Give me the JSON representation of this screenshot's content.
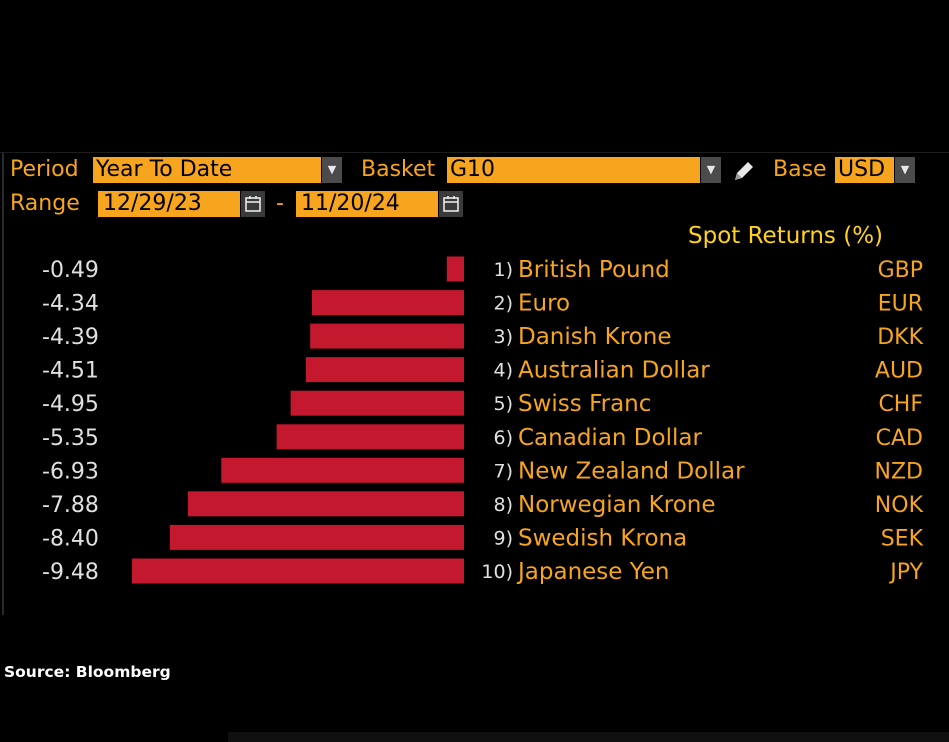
{
  "header": {
    "period_label": "Period",
    "period_value": "Year To Date",
    "basket_label": "Basket",
    "basket_value": "G10",
    "base_label": "Base",
    "base_value": "USD",
    "range_label": "Range",
    "range_start": "12/29/23",
    "range_separator": "-",
    "range_end": "11/20/24",
    "dropdown_icon": "chevron-down-icon",
    "calendar_icon": "calendar-icon",
    "edit_icon": "pencil-icon"
  },
  "colors": {
    "background": "#000000",
    "accent": "#f7a51e",
    "bar": "#c4182e",
    "title": "#ffd21f"
  },
  "chart_data": {
    "type": "bar",
    "orientation": "horizontal",
    "title": "Spot Returns (%)",
    "categories": [
      "British Pound",
      "Euro",
      "Danish Krone",
      "Australian Dollar",
      "Swiss Franc",
      "Canadian Dollar",
      "New Zealand Dollar",
      "Norwegian Krone",
      "Swedish Krona",
      "Japanese Yen"
    ],
    "ranks": [
      "1)",
      "2)",
      "3)",
      "4)",
      "5)",
      "6)",
      "7)",
      "8)",
      "9)",
      "10)"
    ],
    "codes": [
      "GBP",
      "EUR",
      "DKK",
      "AUD",
      "CHF",
      "CAD",
      "NZD",
      "NOK",
      "SEK",
      "JPY"
    ],
    "values": [
      -0.49,
      -4.34,
      -4.39,
      -4.51,
      -4.95,
      -5.35,
      -6.93,
      -7.88,
      -8.4,
      -9.48
    ],
    "value_labels": [
      "-0.49",
      "-4.34",
      "-4.39",
      "-4.51",
      "-4.95",
      "-5.35",
      "-6.93",
      "-7.88",
      "-8.40",
      "-9.48"
    ],
    "xlim": [
      -10.45,
      0
    ],
    "grid": false,
    "legend": "none"
  },
  "footer": {
    "source": "Source: Bloomberg"
  }
}
